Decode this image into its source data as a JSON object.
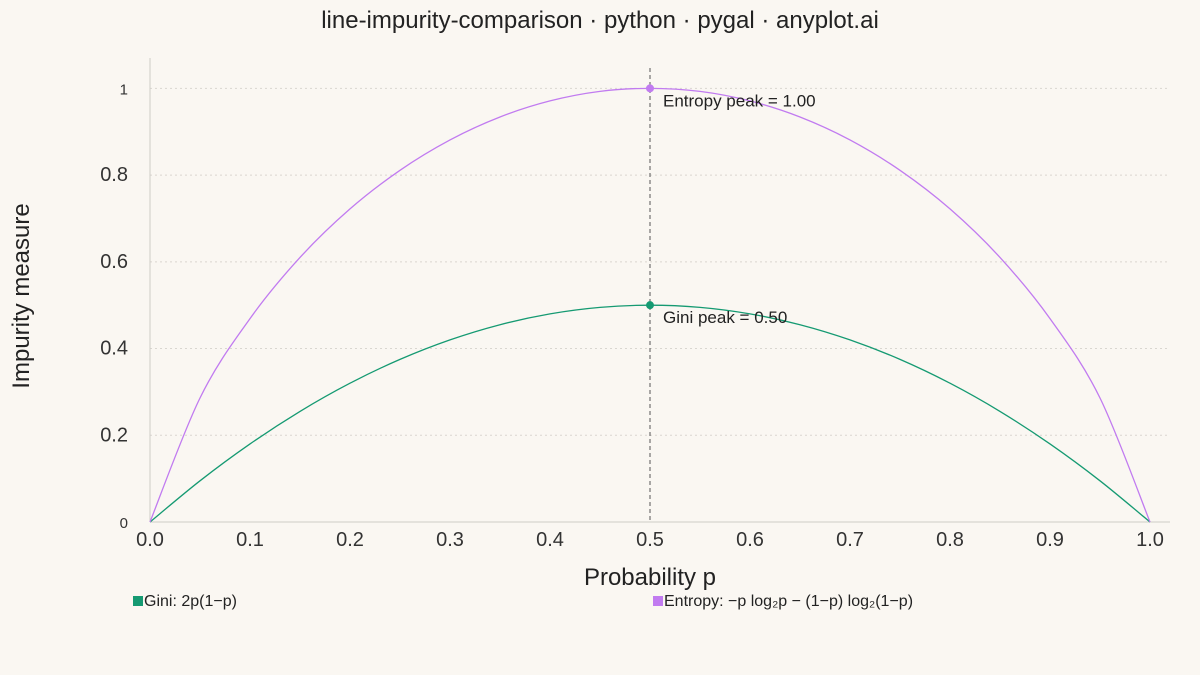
{
  "chart_data": {
    "type": "line",
    "title": "line-impurity-comparison · python · pygal · anyplot.ai",
    "xlabel": "Probability p",
    "ylabel": "Impurity measure",
    "xlim": [
      0,
      1
    ],
    "ylim": [
      0,
      1.07
    ],
    "x_ticks": [
      "0.0",
      "0.1",
      "0.2",
      "0.3",
      "0.4",
      "0.5",
      "0.6",
      "0.7",
      "0.8",
      "0.9",
      "1.0"
    ],
    "y_ticks": [
      "0",
      "0.2",
      "0.4",
      "0.6",
      "0.8",
      "1"
    ],
    "grid": true,
    "legend_position": "bottom",
    "x": [
      0.0,
      0.05,
      0.1,
      0.15,
      0.2,
      0.25,
      0.3,
      0.35,
      0.4,
      0.45,
      0.5,
      0.55,
      0.6,
      0.65,
      0.7,
      0.75,
      0.8,
      0.85,
      0.9,
      0.95,
      1.0
    ],
    "series": [
      {
        "name": "Gini: 2p(1−p)",
        "color": "#159a72",
        "values": [
          0.0,
          0.095,
          0.18,
          0.255,
          0.32,
          0.375,
          0.42,
          0.455,
          0.48,
          0.495,
          0.5,
          0.495,
          0.48,
          0.455,
          0.42,
          0.375,
          0.32,
          0.255,
          0.18,
          0.095,
          0.0
        ]
      },
      {
        "name": "Entropy: −p log₂p − (1−p) log₂(1−p)",
        "color": "#c17bf0",
        "values": [
          0.0,
          0.286,
          0.469,
          0.61,
          0.722,
          0.811,
          0.881,
          0.934,
          0.971,
          0.993,
          1.0,
          0.993,
          0.971,
          0.934,
          0.881,
          0.811,
          0.722,
          0.61,
          0.469,
          0.286,
          0.0
        ]
      }
    ],
    "vertical_line": {
      "x": 0.5
    },
    "annotations": [
      {
        "x": 0.5,
        "y": 1.0,
        "text": "Entropy peak = 1.00",
        "color": "#c17bf0"
      },
      {
        "x": 0.5,
        "y": 0.5,
        "text": "Gini peak = 0.50",
        "color": "#159a72"
      }
    ]
  }
}
